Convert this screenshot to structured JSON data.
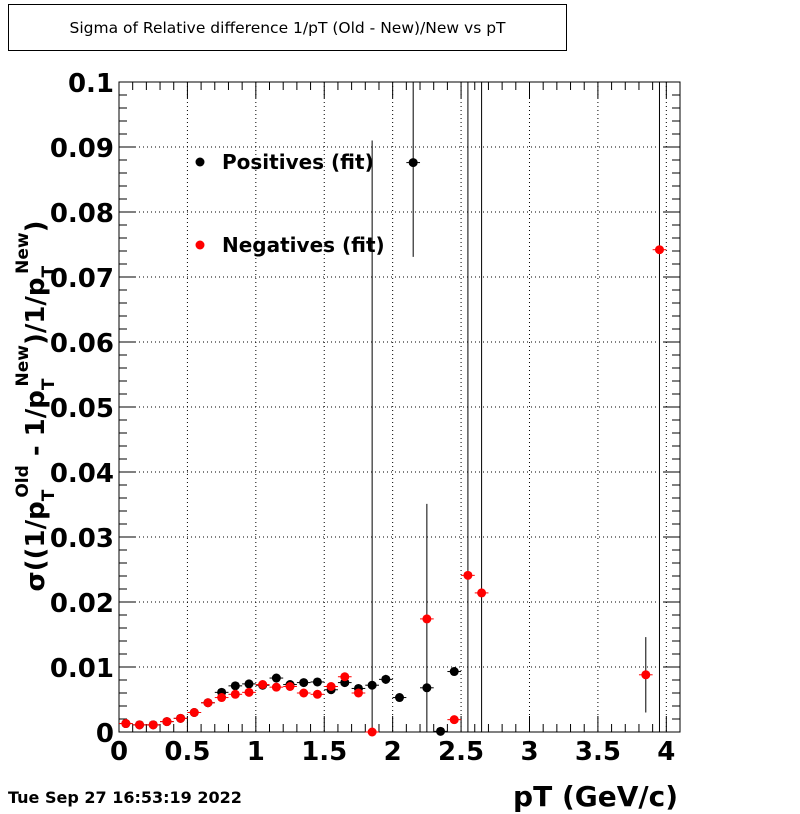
{
  "title": "Sigma of Relative difference 1/pT (Old - New)/New vs pT",
  "timestamp": "Tue Sep 27 16:53:19 2022",
  "colors": {
    "positives": "#000000",
    "negatives": "#ff0000"
  },
  "chart_data": {
    "type": "scatter",
    "xlabel": "pT (GeV/c)",
    "ylabel_parts": {
      "sigma": "σ((1/p",
      "sub1": "T",
      "sup1": "Old",
      "mid": " - 1/p",
      "sub2": "T",
      "sup2": "New",
      "mid2": ")/1/p",
      "sub3": "T",
      "sup3": "New",
      "end": ")"
    },
    "xlim": [
      0,
      4.1
    ],
    "ylim": [
      0,
      0.1
    ],
    "grid": true,
    "legend_placement": "top-left",
    "x_ticks": [
      "0",
      "0.5",
      "1",
      "1.5",
      "2",
      "2.5",
      "3",
      "3.5",
      "4"
    ],
    "y_ticks": [
      "0",
      "0.01",
      "0.02",
      "0.03",
      "0.04",
      "0.05",
      "0.06",
      "0.07",
      "0.08",
      "0.09",
      "0.1"
    ],
    "series": [
      {
        "name": "Positives (fit)",
        "color": "#000000",
        "points": [
          {
            "x": 0.05,
            "y": 0.0013,
            "err": 0.0003
          },
          {
            "x": 0.15,
            "y": 0.0011,
            "err": 0.0002
          },
          {
            "x": 0.25,
            "y": 0.0011,
            "err": 0.0002
          },
          {
            "x": 0.35,
            "y": 0.0016,
            "err": 0.0002
          },
          {
            "x": 0.45,
            "y": 0.0021,
            "err": 0.0002
          },
          {
            "x": 0.55,
            "y": 0.003,
            "err": 0.0003
          },
          {
            "x": 0.65,
            "y": 0.0045,
            "err": 0.0003
          },
          {
            "x": 0.75,
            "y": 0.0061,
            "err": 0.0004
          },
          {
            "x": 0.85,
            "y": 0.0071,
            "err": 0.0004
          },
          {
            "x": 0.95,
            "y": 0.0074,
            "err": 0.0004
          },
          {
            "x": 1.05,
            "y": 0.0072,
            "err": 0.0004
          },
          {
            "x": 1.15,
            "y": 0.0083,
            "err": 0.0005
          },
          {
            "x": 1.25,
            "y": 0.0073,
            "err": 0.0005
          },
          {
            "x": 1.35,
            "y": 0.0076,
            "err": 0.0005
          },
          {
            "x": 1.45,
            "y": 0.0077,
            "err": 0.0005
          },
          {
            "x": 1.55,
            "y": 0.0065,
            "err": 0.0005
          },
          {
            "x": 1.65,
            "y": 0.0076,
            "err": 0.0006
          },
          {
            "x": 1.75,
            "y": 0.0067,
            "err": 0.0006
          },
          {
            "x": 1.85,
            "y": 0.0072,
            "err": 0.0006
          },
          {
            "x": 1.95,
            "y": 0.0081,
            "err": 0.0007
          },
          {
            "x": 2.05,
            "y": 0.0053,
            "err": 0.0006
          },
          {
            "x": 2.15,
            "y": 0.0876,
            "err": 0.0145
          },
          {
            "x": 2.25,
            "y": 0.0068,
            "err": 0.0
          },
          {
            "x": 2.35,
            "y": 0.0001,
            "err": 0.0
          },
          {
            "x": 2.45,
            "y": 0.0093,
            "err": 0.0
          }
        ]
      },
      {
        "name": "Negatives (fit)",
        "color": "#ff0000",
        "points": [
          {
            "x": 0.05,
            "y": 0.0013,
            "err": 0.0003
          },
          {
            "x": 0.15,
            "y": 0.0011,
            "err": 0.0002
          },
          {
            "x": 0.25,
            "y": 0.0011,
            "err": 0.0002
          },
          {
            "x": 0.35,
            "y": 0.0016,
            "err": 0.0002
          },
          {
            "x": 0.45,
            "y": 0.0021,
            "err": 0.0002
          },
          {
            "x": 0.55,
            "y": 0.003,
            "err": 0.0003
          },
          {
            "x": 0.65,
            "y": 0.0045,
            "err": 0.0003
          },
          {
            "x": 0.75,
            "y": 0.0053,
            "err": 0.0004
          },
          {
            "x": 0.85,
            "y": 0.0058,
            "err": 0.0004
          },
          {
            "x": 0.95,
            "y": 0.0061,
            "err": 0.0004
          },
          {
            "x": 1.05,
            "y": 0.0073,
            "err": 0.0004
          },
          {
            "x": 1.15,
            "y": 0.0069,
            "err": 0.0004
          },
          {
            "x": 1.25,
            "y": 0.007,
            "err": 0.0005
          },
          {
            "x": 1.35,
            "y": 0.006,
            "err": 0.0005
          },
          {
            "x": 1.45,
            "y": 0.0058,
            "err": 0.0005
          },
          {
            "x": 1.55,
            "y": 0.007,
            "err": 0.0005
          },
          {
            "x": 1.65,
            "y": 0.0085,
            "err": 0.0006
          },
          {
            "x": 1.75,
            "y": 0.006,
            "err": 0.0006
          },
          {
            "x": 1.85,
            "y": 0.0,
            "err": 0.091
          },
          {
            "x": 2.25,
            "y": 0.0174,
            "err": 0.0177
          },
          {
            "x": 2.45,
            "y": 0.0019,
            "err": 0.0
          },
          {
            "x": 2.55,
            "y": 0.0241,
            "err": 0.1
          },
          {
            "x": 2.65,
            "y": 0.0214,
            "err": 0.1
          },
          {
            "x": 3.85,
            "y": 0.0088,
            "err": 0.0058
          },
          {
            "x": 3.95,
            "y": 0.0742,
            "err": 0.1
          }
        ]
      }
    ]
  }
}
